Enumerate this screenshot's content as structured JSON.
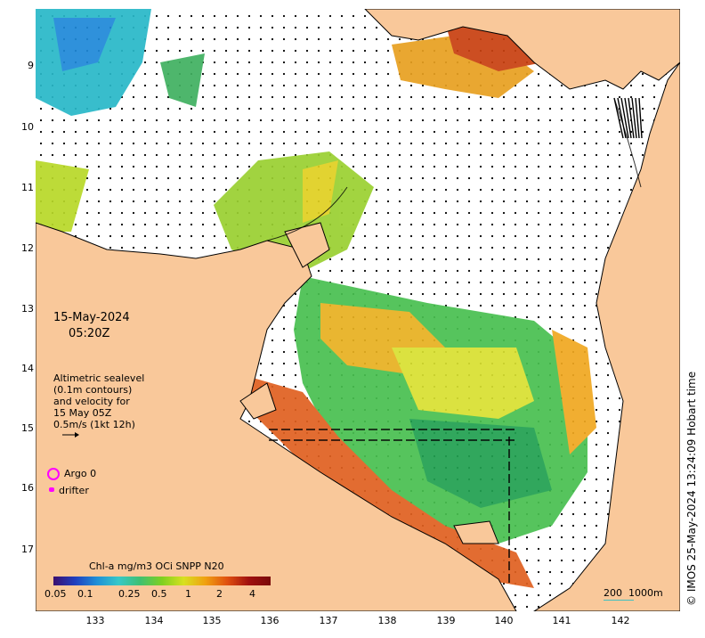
{
  "date": "15-May-2024",
  "time": "05:20Z",
  "legend": {
    "sealevel_text": "Altimetric sealevel\n(0.1m contours)\nand velocity for\n15 May 05Z\n0.5m/s (1kt 12h)",
    "argo": "Argo 0",
    "drifter": "drifter"
  },
  "colorbar": {
    "title": "Chl-a mg/m3 OCi SNPP N20",
    "ticks": [
      "0.05",
      "0.1",
      "0.25",
      "0.5",
      "1",
      "2",
      "4"
    ]
  },
  "scale_bar": {
    "left": "200",
    "right": "1000m"
  },
  "credit": "© IMOS 25-May-2024 13:24:09 Hobart time",
  "axes": {
    "y_ticks": [
      "9",
      "10",
      "11",
      "12",
      "13",
      "14",
      "15",
      "16",
      "17"
    ],
    "x_ticks": [
      "133",
      "134",
      "135",
      "136",
      "137",
      "138",
      "139",
      "140",
      "141",
      "142"
    ]
  },
  "colors": {
    "land": "#f9c89a",
    "ocean": "#ffffff",
    "argo": "#ff00ff"
  }
}
